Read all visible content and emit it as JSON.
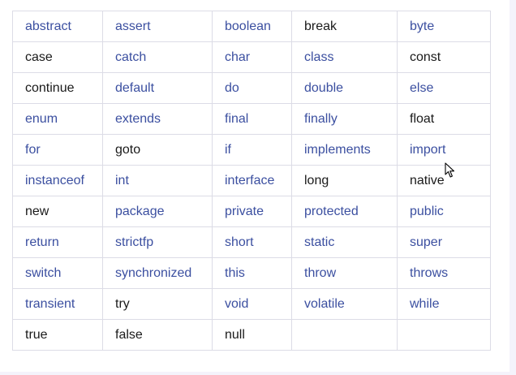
{
  "keywords_table": {
    "rows": [
      [
        {
          "text": "abstract",
          "link": true
        },
        {
          "text": "assert",
          "link": true
        },
        {
          "text": "boolean",
          "link": true
        },
        {
          "text": "break",
          "link": false
        },
        {
          "text": "byte",
          "link": true
        }
      ],
      [
        {
          "text": "case",
          "link": false
        },
        {
          "text": "catch",
          "link": true
        },
        {
          "text": "char",
          "link": true
        },
        {
          "text": "class",
          "link": true
        },
        {
          "text": "const",
          "link": false
        }
      ],
      [
        {
          "text": "continue",
          "link": false
        },
        {
          "text": "default",
          "link": true
        },
        {
          "text": "do",
          "link": true
        },
        {
          "text": "double",
          "link": true
        },
        {
          "text": "else",
          "link": true
        }
      ],
      [
        {
          "text": "enum",
          "link": true
        },
        {
          "text": "extends",
          "link": true
        },
        {
          "text": "final",
          "link": true
        },
        {
          "text": "finally",
          "link": true
        },
        {
          "text": "float",
          "link": false
        }
      ],
      [
        {
          "text": "for",
          "link": true
        },
        {
          "text": "goto",
          "link": false
        },
        {
          "text": "if",
          "link": true
        },
        {
          "text": "implements",
          "link": true
        },
        {
          "text": "import",
          "link": true
        }
      ],
      [
        {
          "text": "instanceof",
          "link": true
        },
        {
          "text": "int",
          "link": true
        },
        {
          "text": "interface",
          "link": true
        },
        {
          "text": "long",
          "link": false
        },
        {
          "text": "native",
          "link": false
        }
      ],
      [
        {
          "text": "new",
          "link": false
        },
        {
          "text": "package",
          "link": true
        },
        {
          "text": "private",
          "link": true
        },
        {
          "text": "protected",
          "link": true
        },
        {
          "text": "public",
          "link": true
        }
      ],
      [
        {
          "text": "return",
          "link": true
        },
        {
          "text": "strictfp",
          "link": true
        },
        {
          "text": "short",
          "link": true
        },
        {
          "text": "static",
          "link": true
        },
        {
          "text": "super",
          "link": true
        }
      ],
      [
        {
          "text": "switch",
          "link": true
        },
        {
          "text": "synchronized",
          "link": true
        },
        {
          "text": "this",
          "link": true
        },
        {
          "text": "throw",
          "link": true
        },
        {
          "text": "throws",
          "link": true
        }
      ],
      [
        {
          "text": "transient",
          "link": true
        },
        {
          "text": "try",
          "link": false
        },
        {
          "text": "void",
          "link": true
        },
        {
          "text": "volatile",
          "link": true
        },
        {
          "text": "while",
          "link": true
        }
      ],
      [
        {
          "text": "true",
          "link": false
        },
        {
          "text": "false",
          "link": false
        },
        {
          "text": "null",
          "link": false
        },
        {
          "text": "",
          "link": false
        },
        {
          "text": "",
          "link": false
        }
      ]
    ]
  },
  "colors": {
    "link": "#3b4fa0",
    "plain": "#1a1a1a",
    "border": "#dcdce6",
    "background": "#f4f3fb"
  },
  "icons": {
    "cursor": "mouse-pointer-icon"
  }
}
